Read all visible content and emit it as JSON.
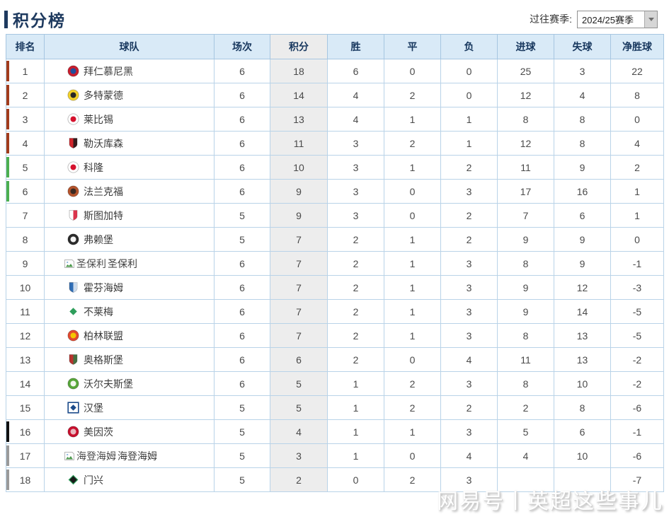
{
  "page": {
    "title": "积分榜",
    "season_label": "过往赛季:",
    "season_value": "2024/25赛季"
  },
  "watermark": "网易号丨英超这些事儿",
  "colors": {
    "accent_navy": "#1e3a5f",
    "header_bg": "#d9eaf7",
    "points_col_bg": "#ededed",
    "table_border": "#b9d3e8",
    "bar": {
      "red": "#a23c1c",
      "green": "#4caf50",
      "black": "#111111",
      "gray": "#9a9a9a"
    }
  },
  "table": {
    "headers": [
      "排名",
      "球队",
      "场次",
      "积分",
      "胜",
      "平",
      "负",
      "进球",
      "失球",
      "净胜球"
    ],
    "rows": [
      {
        "rank": "1",
        "team": "拜仁慕尼黑",
        "bar": "red",
        "icon": {
          "type": "circle",
          "c1": "#c81d2e",
          "c2": "#1f4e9c"
        },
        "played": "6",
        "points": "18",
        "w": "6",
        "d": "0",
        "l": "0",
        "gf": "25",
        "ga": "3",
        "gd": "22"
      },
      {
        "rank": "2",
        "team": "多特蒙德",
        "bar": "red",
        "icon": {
          "type": "circle",
          "c1": "#f2d12b",
          "c2": "#262626"
        },
        "played": "6",
        "points": "14",
        "w": "4",
        "d": "2",
        "l": "0",
        "gf": "12",
        "ga": "4",
        "gd": "8"
      },
      {
        "rank": "3",
        "team": "莱比锡",
        "bar": "red",
        "icon": {
          "type": "circle",
          "c1": "#ffffff",
          "c2": "#d5112d"
        },
        "played": "6",
        "points": "13",
        "w": "4",
        "d": "1",
        "l": "1",
        "gf": "8",
        "ga": "8",
        "gd": "0"
      },
      {
        "rank": "4",
        "team": "勒沃库森",
        "bar": "red",
        "icon": {
          "type": "shield",
          "c1": "#d2252b",
          "c2": "#1a1a1a"
        },
        "played": "6",
        "points": "11",
        "w": "3",
        "d": "2",
        "l": "1",
        "gf": "12",
        "ga": "8",
        "gd": "4"
      },
      {
        "rank": "5",
        "team": "科隆",
        "bar": "green",
        "icon": {
          "type": "circle",
          "c1": "#ffffff",
          "c2": "#d5112d"
        },
        "played": "6",
        "points": "10",
        "w": "3",
        "d": "1",
        "l": "2",
        "gf": "11",
        "ga": "9",
        "gd": "2"
      },
      {
        "rank": "6",
        "team": "法兰克福",
        "bar": "green",
        "icon": {
          "type": "circle",
          "c1": "#b5542c",
          "c2": "#3a2a22"
        },
        "played": "6",
        "points": "9",
        "w": "3",
        "d": "0",
        "l": "3",
        "gf": "17",
        "ga": "16",
        "gd": "1"
      },
      {
        "rank": "7",
        "team": "斯图加特",
        "bar": "none",
        "icon": {
          "type": "shield",
          "c1": "#ffffff",
          "c2": "#d5112d"
        },
        "played": "5",
        "points": "9",
        "w": "3",
        "d": "0",
        "l": "2",
        "gf": "7",
        "ga": "6",
        "gd": "1"
      },
      {
        "rank": "8",
        "team": "弗赖堡",
        "bar": "none",
        "icon": {
          "type": "circle",
          "c1": "#2b2b2b",
          "c2": "#f5f5f5"
        },
        "played": "5",
        "points": "7",
        "w": "2",
        "d": "1",
        "l": "2",
        "gf": "9",
        "ga": "9",
        "gd": "0"
      },
      {
        "rank": "9",
        "team": "圣保利",
        "bar": "none",
        "icon": {
          "type": "broken",
          "alt": "圣保利"
        },
        "played": "6",
        "points": "7",
        "w": "2",
        "d": "1",
        "l": "3",
        "gf": "8",
        "ga": "9",
        "gd": "-1"
      },
      {
        "rank": "10",
        "team": "霍芬海姆",
        "bar": "none",
        "icon": {
          "type": "shield",
          "c1": "#2f6db5",
          "c2": "#e8eef6"
        },
        "played": "6",
        "points": "7",
        "w": "2",
        "d": "1",
        "l": "3",
        "gf": "9",
        "ga": "12",
        "gd": "-3"
      },
      {
        "rank": "11",
        "team": "不莱梅",
        "bar": "none",
        "icon": {
          "type": "diamond",
          "c1": "#2e9e5b",
          "c2": "#ffffff"
        },
        "played": "6",
        "points": "7",
        "w": "2",
        "d": "1",
        "l": "3",
        "gf": "9",
        "ga": "14",
        "gd": "-5"
      },
      {
        "rank": "12",
        "team": "柏林联盟",
        "bar": "none",
        "icon": {
          "type": "circle",
          "c1": "#e2492f",
          "c2": "#f4c600"
        },
        "played": "6",
        "points": "7",
        "w": "2",
        "d": "1",
        "l": "3",
        "gf": "8",
        "ga": "13",
        "gd": "-5"
      },
      {
        "rank": "13",
        "team": "奥格斯堡",
        "bar": "none",
        "icon": {
          "type": "shield",
          "c1": "#b8332e",
          "c2": "#2f7a44"
        },
        "played": "6",
        "points": "6",
        "w": "2",
        "d": "0",
        "l": "4",
        "gf": "11",
        "ga": "13",
        "gd": "-2"
      },
      {
        "rank": "14",
        "team": "沃尔夫斯堡",
        "bar": "none",
        "icon": {
          "type": "circle",
          "c1": "#57a639",
          "c2": "#f2f7ee"
        },
        "played": "6",
        "points": "5",
        "w": "1",
        "d": "2",
        "l": "3",
        "gf": "8",
        "ga": "10",
        "gd": "-2"
      },
      {
        "rank": "15",
        "team": "汉堡",
        "bar": "none",
        "icon": {
          "type": "diamond2",
          "c1": "#1b4a8a",
          "c2": "#ffffff"
        },
        "played": "5",
        "points": "5",
        "w": "1",
        "d": "2",
        "l": "2",
        "gf": "2",
        "ga": "8",
        "gd": "-6"
      },
      {
        "rank": "16",
        "team": "美因茨",
        "bar": "black",
        "icon": {
          "type": "circle",
          "c1": "#c8102e",
          "c2": "#e9b8bf"
        },
        "played": "5",
        "points": "4",
        "w": "1",
        "d": "1",
        "l": "3",
        "gf": "5",
        "ga": "6",
        "gd": "-1"
      },
      {
        "rank": "17",
        "team": "海登海姆",
        "bar": "gray",
        "icon": {
          "type": "broken",
          "alt": "海登海姆"
        },
        "played": "5",
        "points": "3",
        "w": "1",
        "d": "0",
        "l": "4",
        "gf": "4",
        "ga": "10",
        "gd": "-6"
      },
      {
        "rank": "18",
        "team": "门兴",
        "bar": "gray",
        "icon": {
          "type": "diamond",
          "c1": "#1a1a1a",
          "c2": "#2e9e5b"
        },
        "played": "5",
        "points": "2",
        "w": "0",
        "d": "2",
        "l": "3",
        "gf": "",
        "ga": "",
        "gd": "-7"
      }
    ]
  }
}
